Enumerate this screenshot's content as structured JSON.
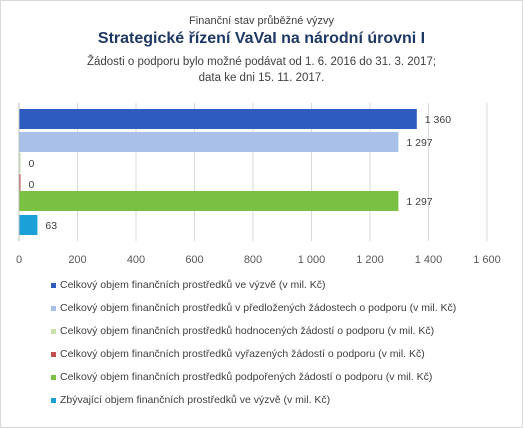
{
  "header": {
    "kicker": "Finanční stav průběžné výzvy",
    "title": "Strategické řízení VaVaI na národní úrovni I",
    "subtitle_line1": "Žádosti o podporu bylo možné  podávat od 1. 6. 2016 do 31. 3. 2017;",
    "subtitle_line2": "data ke dni 15. 11. 2017."
  },
  "chart_data": {
    "type": "bar",
    "orientation": "horizontal",
    "xlim": [
      0,
      1600
    ],
    "xticks": [
      0,
      200,
      400,
      600,
      800,
      1000,
      1200,
      1400,
      1600
    ],
    "xtick_labels": [
      "0",
      "200",
      "400",
      "600",
      "800",
      "1 000",
      "1 200",
      "1 400",
      "1 600"
    ],
    "grid": "vertical",
    "legend_position": "bottom",
    "series": [
      {
        "name": "Celkový objem finančních prostředků ve výzvě (v mil. Kč)",
        "value": 1360,
        "label": "1 360",
        "color": "#2e5bbf"
      },
      {
        "name": "Celkový objem finančních prostředků v předložených žádostech o podporu (v mil. Kč)",
        "value": 1297,
        "label": "1 297",
        "color": "#a9c0e8"
      },
      {
        "name": "Celkový objem finančních prostředků hodnocených žádostí o podporu (v mil. Kč)",
        "value": 0,
        "label": "0",
        "color": "#c9e0a8"
      },
      {
        "name": "Celkový objem finančních prostředků vyřazených žádostí o podporu (v mil. Kč)",
        "value": 0,
        "label": "0",
        "color": "#c0504d"
      },
      {
        "name": "Celkový objem finančních prostředků podpořených žádostí o podporu (v mil. Kč)",
        "value": 1297,
        "label": "1 297",
        "color": "#7ac143"
      },
      {
        "name": "Zbývající objem finančních prostředků ve výzvě (v mil. Kč)",
        "value": 63,
        "label": "63",
        "color": "#1ba1d8"
      }
    ]
  }
}
